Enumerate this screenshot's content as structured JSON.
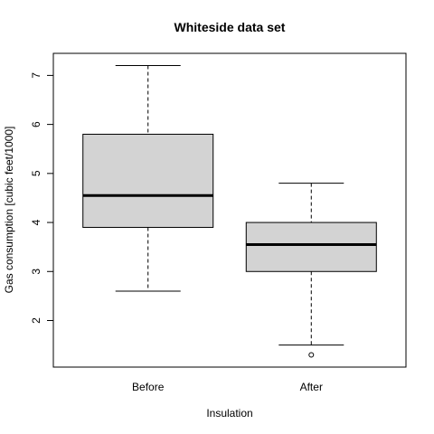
{
  "chart_data": {
    "type": "boxplot",
    "title": "Whiteside data set",
    "xlabel": "Insulation",
    "ylabel": "Gas consumption [cubic feet/1000]",
    "ylim": [
      1.05,
      7.45
    ],
    "yticks": [
      "2",
      "3",
      "4",
      "5",
      "6",
      "7"
    ],
    "categories": [
      "Before",
      "After"
    ],
    "series": [
      {
        "category": "Before",
        "whisker_low": 2.6,
        "q1": 3.9,
        "median": 4.55,
        "q3": 5.8,
        "whisker_high": 7.2,
        "outliers": []
      },
      {
        "category": "After",
        "whisker_low": 1.5,
        "q1": 3.0,
        "median": 3.55,
        "q3": 4.0,
        "whisker_high": 4.8,
        "outliers": [
          1.3
        ]
      }
    ],
    "box_fill": "#d3d3d3",
    "grid": false,
    "legend": "none"
  }
}
